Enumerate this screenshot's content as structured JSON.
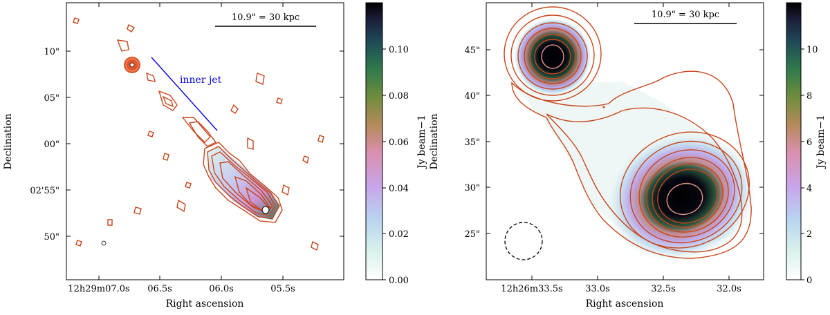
{
  "chart_data": [
    {
      "type": "contour-image",
      "xlabel": "Right ascension",
      "ylabel": "Declination",
      "xticks": [
        "12h29m07.0s",
        "06.5s",
        "06.0s",
        "05.5s"
      ],
      "yticks": [
        "10\"",
        "05\"",
        "00\"",
        "02'55\"",
        "50\""
      ],
      "scalebar": "10.9\" = 30 kpc",
      "annotation": "inner jet",
      "annotation_color": "#0000dd",
      "colorbar": {
        "label": "Jy beam−1",
        "ticks": [
          "0.00",
          "0.02",
          "0.04",
          "0.06",
          "0.08",
          "0.10"
        ],
        "range": [
          0.0,
          0.12
        ],
        "colormap": "cubehelix_r"
      },
      "contour_color": "#c8451a"
    },
    {
      "type": "contour-image",
      "xlabel": "Right ascension",
      "ylabel": "Declination",
      "xticks": [
        "12h26m33.5s",
        "33.0s",
        "32.5s",
        "32.0s"
      ],
      "yticks": [
        "45\"",
        "40\"",
        "35\"",
        "30\"",
        "25\""
      ],
      "scalebar": "10.9\" = 30 kpc",
      "colorbar": {
        "label": "Jy beam−1",
        "ticks": [
          "0",
          "2",
          "4",
          "6",
          "8",
          "10"
        ],
        "range": [
          0,
          12
        ],
        "colormap": "cubehelix_r"
      },
      "contour_color": "#c8451a"
    }
  ]
}
